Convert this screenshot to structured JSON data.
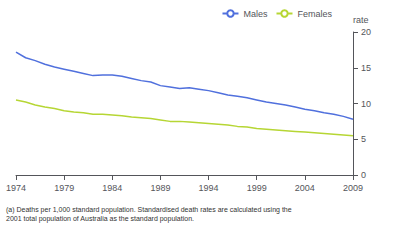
{
  "chart_data": {
    "type": "line",
    "ylabel": "rate",
    "annotations": [
      "(a) Deaths per 1,000 standard population. Standardised death rates are calculated using the\n2001 total population of Australia as the standard population."
    ],
    "x": [
      1974,
      1975,
      1976,
      1977,
      1978,
      1979,
      1980,
      1981,
      1982,
      1983,
      1984,
      1985,
      1986,
      1987,
      1988,
      1989,
      1990,
      1991,
      1992,
      1993,
      1994,
      1995,
      1996,
      1997,
      1998,
      1999,
      2000,
      2001,
      2002,
      2003,
      2004,
      2005,
      2006,
      2007,
      2008,
      2009
    ],
    "series": [
      {
        "name": "Males",
        "values": [
          17.2,
          16.4,
          16.0,
          15.5,
          15.1,
          14.8,
          14.5,
          14.2,
          13.9,
          14.0,
          14.0,
          13.8,
          13.5,
          13.2,
          13.0,
          12.5,
          12.3,
          12.1,
          12.2,
          12.0,
          11.8,
          11.5,
          11.2,
          11.0,
          10.8,
          10.5,
          10.2,
          10.0,
          9.8,
          9.5,
          9.2,
          9.0,
          8.7,
          8.5,
          8.2,
          7.8
        ]
      },
      {
        "name": "Females",
        "values": [
          10.5,
          10.2,
          9.8,
          9.5,
          9.3,
          9.0,
          8.8,
          8.7,
          8.5,
          8.5,
          8.4,
          8.3,
          8.1,
          8.0,
          7.9,
          7.7,
          7.5,
          7.5,
          7.4,
          7.3,
          7.2,
          7.1,
          7.0,
          6.8,
          6.7,
          6.5,
          6.4,
          6.3,
          6.2,
          6.1,
          6.0,
          5.9,
          5.8,
          5.7,
          5.6,
          5.5
        ]
      }
    ],
    "xlim": [
      1974,
      2009
    ],
    "xticks": [
      1974,
      1979,
      1984,
      1989,
      1994,
      1999,
      2004,
      2009
    ],
    "ylim": [
      0,
      20
    ],
    "yticks": [
      0,
      5,
      10,
      15,
      20
    ],
    "grid": false,
    "legend": "upper right"
  }
}
